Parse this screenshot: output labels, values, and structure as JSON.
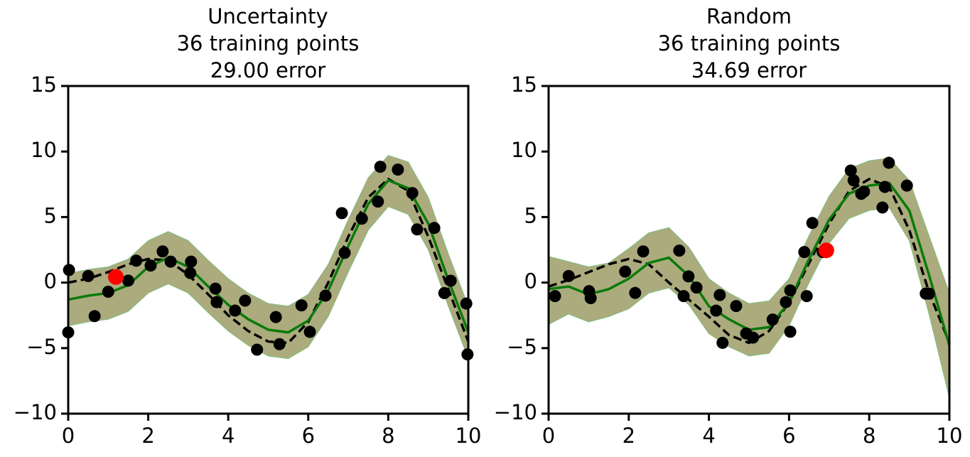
{
  "chart_data": [
    {
      "type": "line",
      "title": [
        "Uncertainty",
        "36 training points",
        "29.00 error"
      ],
      "xlim": [
        0,
        10
      ],
      "ylim": [
        -10,
        15
      ],
      "xticks": [
        0,
        2,
        4,
        6,
        8,
        10
      ],
      "yticks": [
        {
          "value": -10,
          "label": "−10"
        },
        {
          "value": -5,
          "label": "−5"
        },
        0,
        5,
        10,
        15
      ],
      "x": [
        0,
        0.5,
        1,
        1.5,
        2,
        2.5,
        3,
        3.5,
        4,
        4.5,
        5,
        5.5,
        6,
        6.5,
        7,
        7.5,
        8,
        8.5,
        9,
        9.5,
        10
      ],
      "band": {
        "color": "#abab7e",
        "upper": [
          0.7,
          1.0,
          1.2,
          1.8,
          3.2,
          3.9,
          3.2,
          1.7,
          0.3,
          -0.8,
          -1.6,
          -1.8,
          -0.9,
          1.4,
          4.8,
          8.0,
          9.7,
          9.2,
          6.5,
          2.2,
          -1.8
        ],
        "lower": [
          -3.3,
          -3.0,
          -2.8,
          -2.2,
          -0.8,
          -0.1,
          -0.8,
          -2.3,
          -3.7,
          -4.8,
          -5.6,
          -5.8,
          -4.9,
          -2.6,
          0.8,
          4.0,
          5.8,
          5.2,
          2.5,
          -1.8,
          -5.8
        ]
      },
      "truth": {
        "color": "#000000",
        "values": [
          0,
          0.3,
          0.8,
          1.4,
          1.8,
          1.7,
          0.6,
          -0.9,
          -2.5,
          -3.7,
          -4.5,
          -4.6,
          -3.0,
          0,
          3.5,
          6.5,
          7.9,
          7.0,
          3.5,
          -0.5,
          -4.5
        ]
      },
      "mean": {
        "color": "#0a7a0a",
        "values": [
          -1.3,
          -1.0,
          -0.8,
          -0.2,
          1.2,
          1.9,
          1.2,
          -0.3,
          -1.7,
          -2.8,
          -3.6,
          -3.8,
          -2.9,
          -0.6,
          2.8,
          6.0,
          7.8,
          7.2,
          4.5,
          0.2,
          -3.8
        ]
      },
      "points": {
        "color": "#000000",
        "x": [
          0.02,
          0.0,
          0.5,
          0.66,
          1.0,
          1.5,
          1.7,
          2.06,
          2.36,
          2.56,
          3.07,
          3.05,
          3.68,
          3.71,
          4.17,
          4.42,
          4.72,
          5.19,
          5.28,
          5.83,
          6.04,
          6.43,
          6.84,
          6.91,
          7.34,
          7.74,
          7.8,
          8.24,
          8.6,
          8.72,
          9.15,
          9.4,
          9.56,
          9.95,
          9.98
        ],
        "y": [
          0.96,
          -3.8,
          0.5,
          -2.56,
          -0.7,
          0.15,
          1.67,
          1.3,
          2.38,
          1.6,
          1.6,
          0.73,
          -0.46,
          -1.49,
          -2.14,
          -1.38,
          -5.12,
          -2.63,
          -4.7,
          -1.74,
          -3.76,
          -1.0,
          5.3,
          2.27,
          4.88,
          6.18,
          8.84,
          8.62,
          6.83,
          4.06,
          4.17,
          -0.8,
          0.14,
          -1.6,
          -5.48
        ]
      },
      "query": {
        "color": "#ff0000",
        "x": [
          1.19
        ],
        "y": [
          0.43
        ]
      }
    },
    {
      "type": "line",
      "title": [
        "Random",
        "36 training points",
        "34.69 error"
      ],
      "xlim": [
        0,
        10
      ],
      "ylim": [
        -10,
        15
      ],
      "xticks": [
        0,
        2,
        4,
        6,
        8,
        10
      ],
      "yticks": [
        {
          "value": -10,
          "label": "−10"
        },
        {
          "value": -5,
          "label": "−5"
        },
        0,
        5,
        10,
        15
      ],
      "x": [
        0,
        0.5,
        1,
        1.5,
        2,
        2.5,
        3,
        3.5,
        4,
        4.5,
        5,
        5.5,
        6,
        6.5,
        7,
        7.5,
        8,
        8.5,
        9,
        9.5,
        10
      ],
      "band": {
        "color": "#abab7e",
        "upper": [
          2.0,
          1.6,
          1.2,
          1.5,
          2.6,
          3.8,
          4.2,
          2.7,
          0.3,
          -0.8,
          -1.6,
          -1.4,
          0.3,
          3.6,
          6.6,
          8.7,
          9.3,
          9.5,
          7.8,
          3.5,
          -0.8
        ],
        "lower": [
          -3.2,
          -2.4,
          -3.0,
          -2.6,
          -2.0,
          -0.8,
          -0.4,
          -1.7,
          -3.9,
          -4.9,
          -5.6,
          -5.4,
          -3.3,
          0.0,
          3.0,
          4.9,
          5.5,
          5.7,
          3.2,
          -2.5,
          -8.8
        ]
      },
      "truth": {
        "color": "#000000",
        "values": [
          -0.3,
          0.2,
          0.8,
          1.4,
          1.8,
          1.4,
          0,
          -1.3,
          -2.6,
          -4.0,
          -4.6,
          -3.7,
          -1.5,
          1.5,
          4.5,
          7.0,
          7.9,
          7.3,
          4.0,
          -0.8,
          -4.6
        ]
      },
      "mean": {
        "color": "#0a7a0a",
        "values": [
          -0.5,
          -0.3,
          -0.9,
          -0.5,
          0.3,
          1.5,
          1.9,
          0.5,
          -1.8,
          -2.8,
          -3.6,
          -3.4,
          -1.5,
          1.8,
          4.8,
          6.8,
          7.4,
          7.6,
          5.5,
          0.5,
          -4.8
        ]
      },
      "points": {
        "color": "#000000",
        "x": [
          0.16,
          0.5,
          1.01,
          1.05,
          1.91,
          2.16,
          2.36,
          3.26,
          3.37,
          3.49,
          3.69,
          4.27,
          4.18,
          4.34,
          4.68,
          4.93,
          5.1,
          5.59,
          5.92,
          6.03,
          6.03,
          6.38,
          6.44,
          6.58,
          6.84,
          7.54,
          7.61,
          7.8,
          7.87,
          8.33,
          8.39,
          8.49,
          8.94,
          9.41,
          9.49
        ],
        "y": [
          -1.03,
          0.5,
          -0.65,
          -1.19,
          0.84,
          -0.79,
          2.38,
          2.44,
          -1.03,
          0.47,
          -0.38,
          -0.95,
          -2.14,
          -4.6,
          -1.79,
          -3.88,
          -4.2,
          -2.82,
          -1.49,
          -0.6,
          -3.75,
          2.33,
          -1.03,
          4.55,
          2.33,
          8.55,
          7.8,
          6.77,
          6.94,
          5.73,
          7.3,
          9.14,
          7.4,
          -0.84,
          -0.84
        ]
      },
      "query": {
        "color": "#ff0000",
        "x": [
          6.93
        ],
        "y": [
          2.46
        ]
      }
    }
  ]
}
